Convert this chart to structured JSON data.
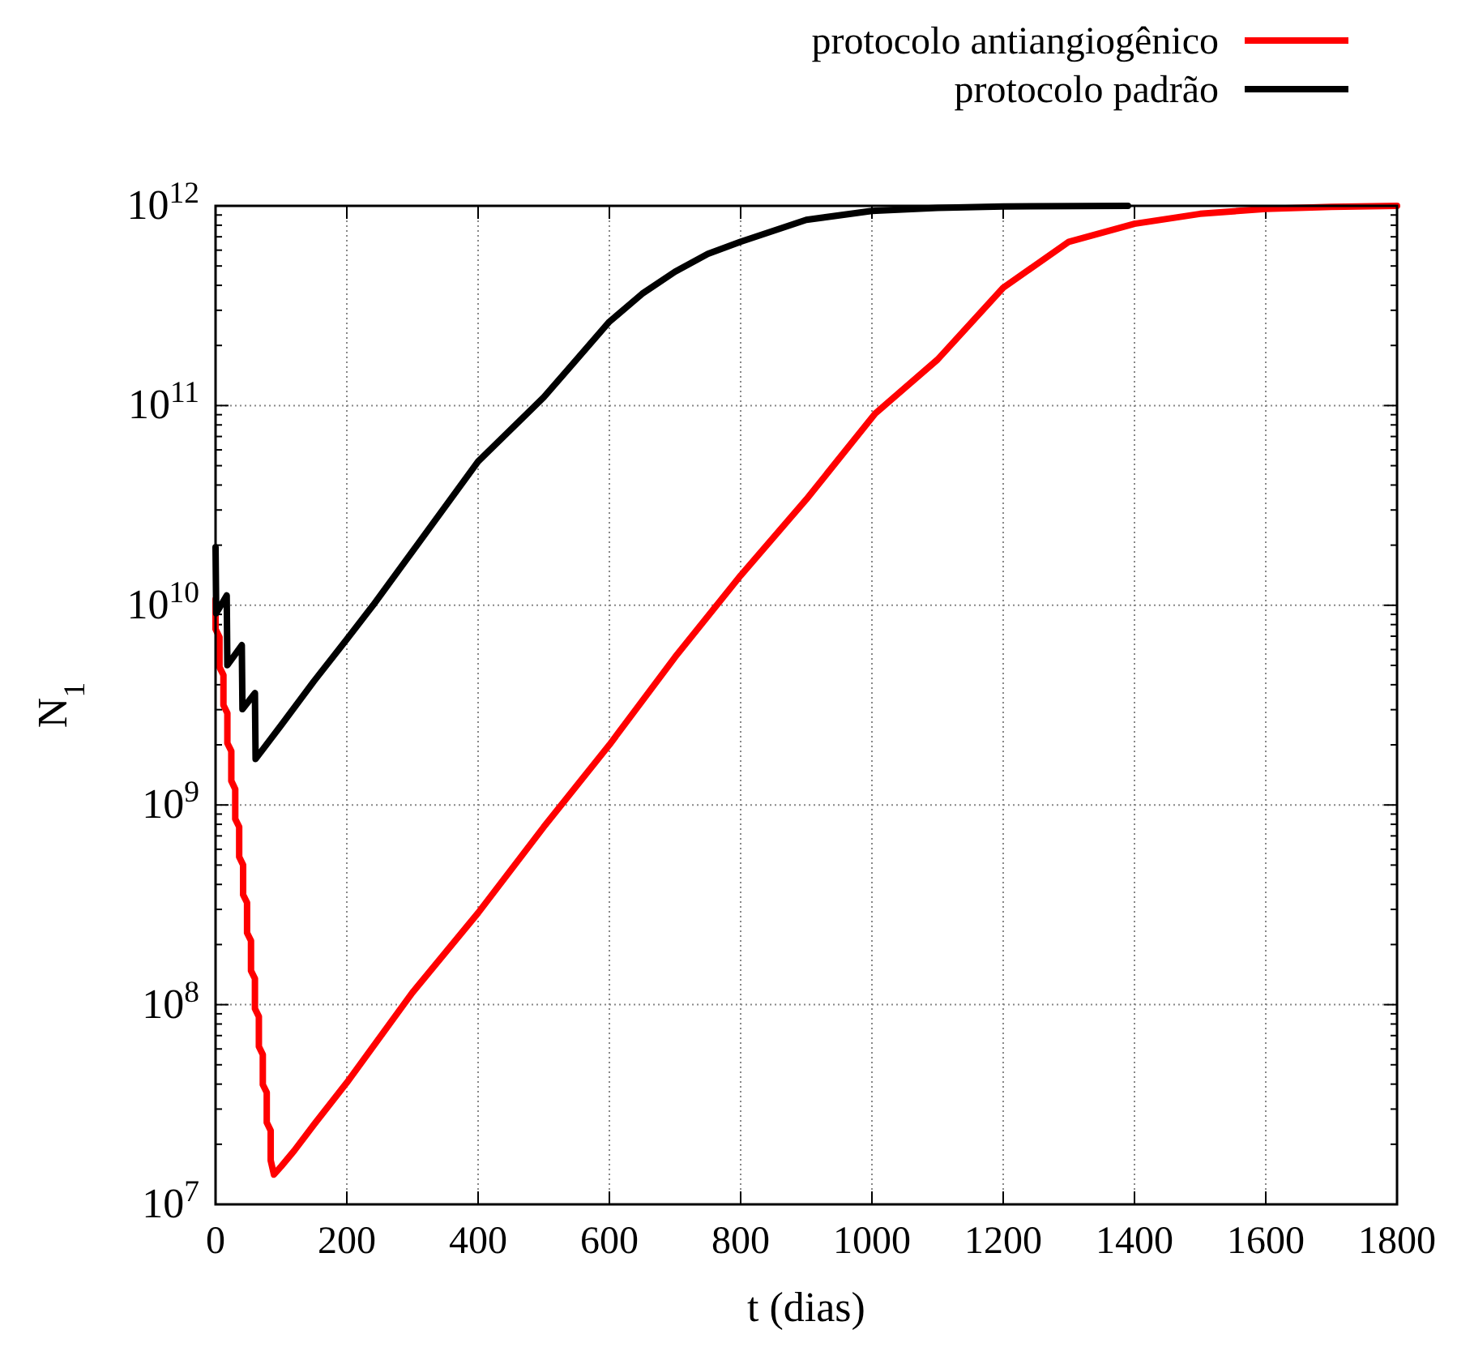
{
  "chart_data": {
    "type": "line",
    "xlabel": "t (dias)",
    "ylabel": "N$_{1}$",
    "log": "y",
    "grid": true,
    "legend": "top right",
    "line_style": "solid",
    "marker": "none",
    "xlim": [
      0,
      1800
    ],
    "xticks": [
      0,
      200,
      400,
      600,
      800,
      1000,
      1200,
      1400,
      1600,
      1800
    ],
    "ylim": [
      10000000.0,
      1000000000000.0
    ],
    "yticks": [
      {
        "value": 10000000.0,
        "label": "10$^{7}$"
      },
      {
        "value": 20000000.0,
        "label": null
      },
      {
        "value": 30000000.0,
        "label": null
      },
      {
        "value": 40000000.0,
        "label": null
      },
      {
        "value": 50000000.0,
        "label": null
      },
      {
        "value": 60000000.0,
        "label": null
      },
      {
        "value": 70000000.0,
        "label": null
      },
      {
        "value": 80000000.0,
        "label": null
      },
      {
        "value": 90000000.0,
        "label": null
      },
      {
        "value": 100000000.0,
        "label": "10$^{8}$"
      },
      {
        "value": 200000000.0,
        "label": null
      },
      {
        "value": 300000000.0,
        "label": null
      },
      {
        "value": 400000000.0,
        "label": null
      },
      {
        "value": 500000000.0,
        "label": null
      },
      {
        "value": 600000000.0,
        "label": null
      },
      {
        "value": 700000000.0,
        "label": null
      },
      {
        "value": 800000000.0,
        "label": null
      },
      {
        "value": 900000000.0,
        "label": null
      },
      {
        "value": 1000000000.0,
        "label": "10$^{9}$"
      },
      {
        "value": 2000000000.0,
        "label": null
      },
      {
        "value": 3000000000.0,
        "label": null
      },
      {
        "value": 4000000000.0,
        "label": null
      },
      {
        "value": 5000000000.0,
        "label": null
      },
      {
        "value": 6000000000.0,
        "label": null
      },
      {
        "value": 7000000000.0,
        "label": null
      },
      {
        "value": 8000000000.0,
        "label": null
      },
      {
        "value": 9000000000.0,
        "label": null
      },
      {
        "value": 10000000000.0,
        "label": "10$^{10}$"
      },
      {
        "value": 20000000000.0,
        "label": null
      },
      {
        "value": 30000000000.0,
        "label": null
      },
      {
        "value": 40000000000.0,
        "label": null
      },
      {
        "value": 50000000000.0,
        "label": null
      },
      {
        "value": 60000000000.0,
        "label": null
      },
      {
        "value": 70000000000.0,
        "label": null
      },
      {
        "value": 80000000000.0,
        "label": null
      },
      {
        "value": 90000000000.0,
        "label": null
      },
      {
        "value": 100000000000.0,
        "label": "10$^{11}$"
      },
      {
        "value": 200000000000.0,
        "label": null
      },
      {
        "value": 300000000000.0,
        "label": null
      },
      {
        "value": 400000000000.0,
        "label": null
      },
      {
        "value": 500000000000.0,
        "label": null
      },
      {
        "value": 600000000000.0,
        "label": null
      },
      {
        "value": 700000000000.0,
        "label": null
      },
      {
        "value": 800000000000.0,
        "label": null
      },
      {
        "value": 900000000000.0,
        "label": null
      },
      {
        "value": 1000000000000.0,
        "label": "10$^{12}$"
      }
    ],
    "series": [
      {
        "name": "protocolo antiangiogênico",
        "color": "#ff0000",
        "x": [
          0,
          0,
          6,
          6,
          12,
          12,
          18,
          18,
          24,
          24,
          30,
          30,
          36,
          36,
          42,
          42,
          48,
          48,
          54,
          54,
          60,
          60,
          66,
          66,
          72,
          72,
          78,
          78,
          84,
          84,
          89,
          100,
          120,
          150,
          200,
          300,
          400,
          500,
          600,
          700,
          800,
          900,
          1005,
          1100,
          1200,
          1300,
          1400,
          1500,
          1600,
          1700,
          1800
        ],
        "values": [
          10700000000.0,
          7590000000.0,
          6920000000.0,
          4900000000.0,
          4470000000.0,
          3160000000.0,
          2880000000.0,
          2040000000.0,
          1860000000.0,
          1320000000.0,
          1200000000.0,
          851000000.0,
          776000000.0,
          550000000.0,
          501000000.0,
          355000000.0,
          324000000.0,
          229000000.0,
          209000000.0,
          148000000.0,
          135000000.0,
          95500000.0,
          87100000.0,
          61700000.0,
          56200000.0,
          39800000.0,
          36300000.0,
          25700000.0,
          23400000.0,
          16600000.0,
          14100000.0,
          15500000.0,
          18600000.0,
          25100000.0,
          40700000.0,
          115000000.0,
          288000000.0,
          776000000.0,
          2000000000.0,
          5500000000.0,
          14100000000.0,
          33900000000.0,
          91200000000.0,
          170000000000.0,
          389000000000.0,
          661000000000.0,
          813000000000.0,
          912000000000.0,
          966000000000.0,
          989000000000.0,
          1000000000000.0
        ]
      },
      {
        "name": "protocolo padrão",
        "color": "#000000",
        "x": [
          0,
          1,
          17,
          18,
          40,
          41,
          60,
          61,
          100,
          150,
          200,
          240,
          300,
          400,
          500,
          550,
          600,
          650,
          700,
          750,
          800,
          900,
          1000,
          1100,
          1200,
          1390
        ],
        "values": [
          19500000000.0,
          9120000000.0,
          11200000000.0,
          5010000000.0,
          6310000000.0,
          3020000000.0,
          3630000000.0,
          1700000000.0,
          2510000000.0,
          4170000000.0,
          6760000000.0,
          10000000000.0,
          18600000000.0,
          52500000000.0,
          110000000000.0,
          170000000000.0,
          263000000000.0,
          363000000000.0,
          468000000000.0,
          575000000000.0,
          661000000000.0,
          851000000000.0,
          944000000000.0,
          977000000000.0,
          993000000000.0,
          1000000000000.0
        ]
      }
    ]
  }
}
